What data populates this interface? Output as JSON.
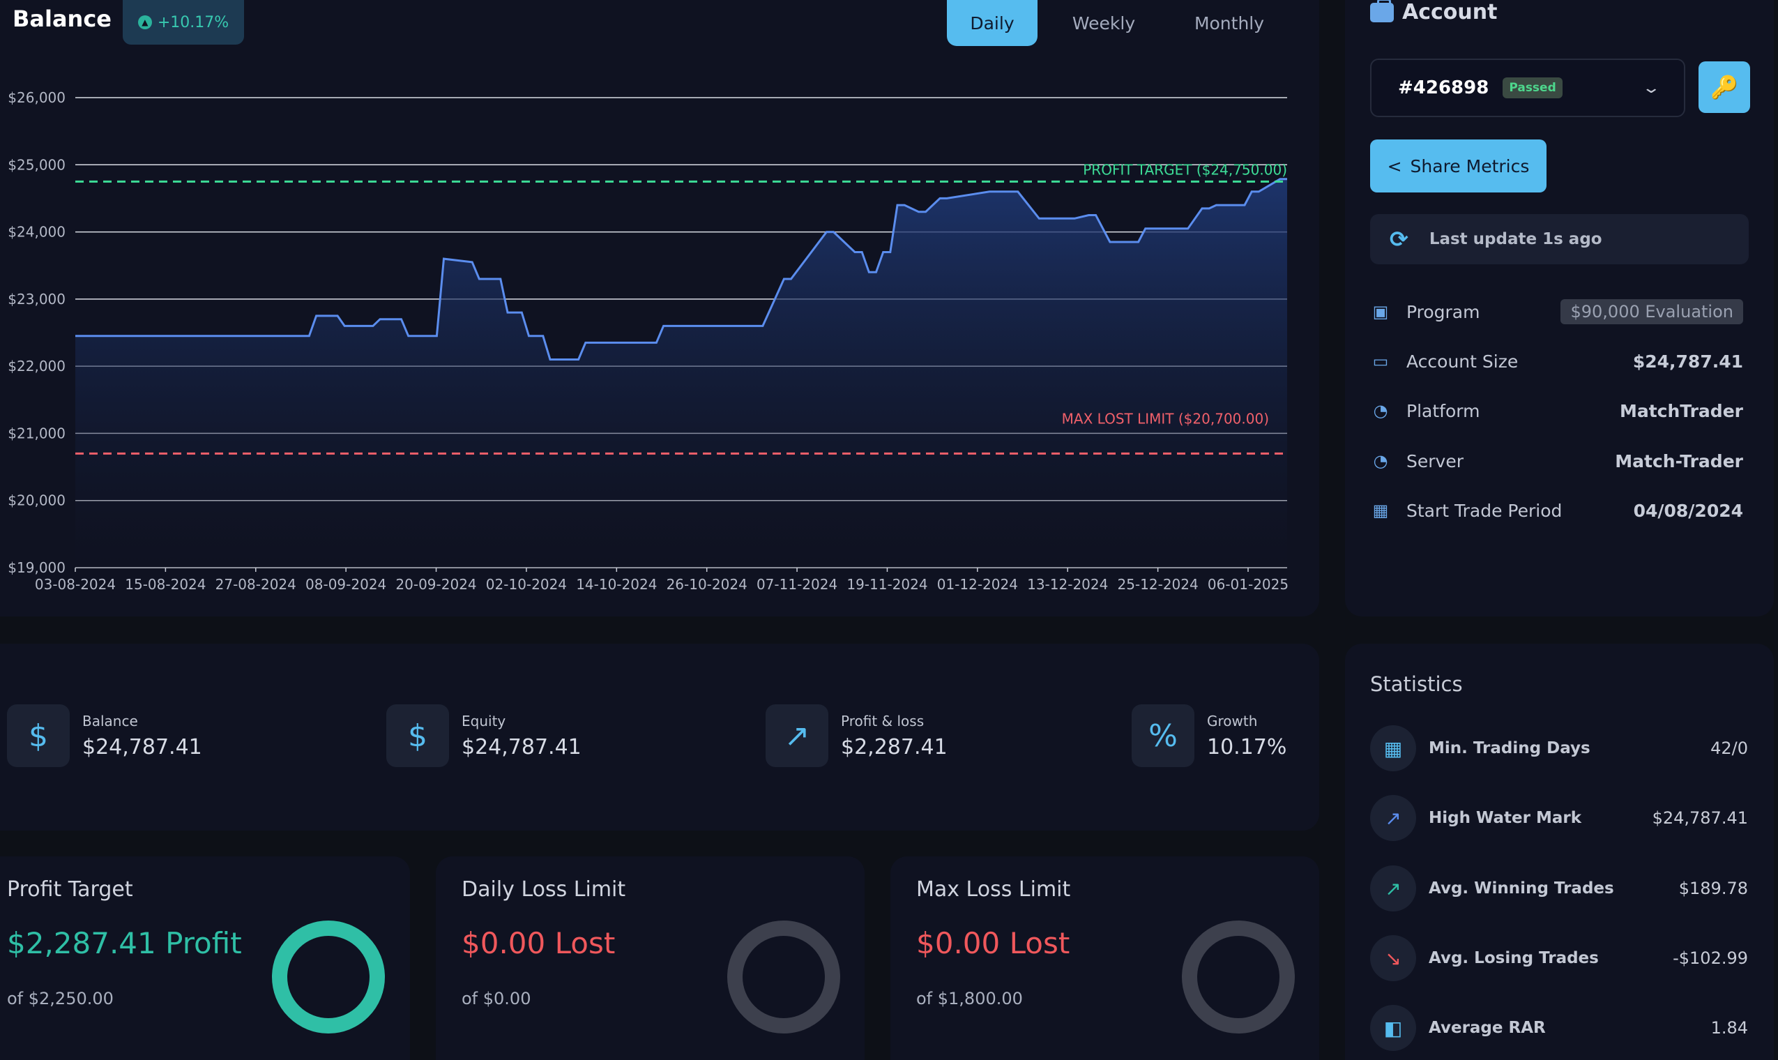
{
  "header": {
    "title": "Balance",
    "growth_badge": "+10.17%",
    "tabs": [
      {
        "label": "Daily",
        "active": true
      },
      {
        "label": "Weekly",
        "active": false
      },
      {
        "label": "Monthly",
        "active": false
      }
    ]
  },
  "chart_data": {
    "type": "area",
    "title": "",
    "xlabel": "",
    "ylabel": "",
    "ylim": [
      19000,
      26000
    ],
    "y_ticks": [
      "$26,000",
      "$25,000",
      "$24,000",
      "$23,000",
      "$22,000",
      "$21,000",
      "$20,000",
      "$19,000"
    ],
    "y_tick_values": [
      26000,
      25000,
      24000,
      23000,
      22000,
      21000,
      20000,
      19000
    ],
    "x_ticks": [
      "03-08-2024",
      "15-08-2024",
      "27-08-2024",
      "08-09-2024",
      "20-09-2024",
      "02-10-2024",
      "14-10-2024",
      "26-10-2024",
      "07-11-2024",
      "19-11-2024",
      "01-12-2024",
      "13-12-2024",
      "25-12-2024",
      "06-01-2025"
    ],
    "grid": true,
    "profit_target": {
      "value": 24750,
      "label": "PROFIT TARGET ($24,750.00)",
      "color": "#3ddc97"
    },
    "max_loss": {
      "value": 20700,
      "label": "MAX LOST LIMIT ($20,700.00)",
      "color": "#f0606a"
    },
    "line_color": "#5b8dee",
    "series": [
      {
        "x": [
          0,
          33,
          34,
          37,
          38,
          42,
          43,
          46,
          47,
          51,
          52,
          56,
          57,
          60,
          61,
          63,
          64,
          66,
          67,
          71,
          72,
          75,
          76,
          79,
          80,
          82,
          83,
          88,
          89,
          96,
          97,
          100,
          101,
          106,
          107,
          110,
          111,
          112,
          113,
          114,
          115,
          116,
          117,
          119,
          120,
          122,
          123,
          129,
          130,
          132,
          133,
          136,
          137,
          140,
          141,
          143,
          144,
          146,
          147,
          149,
          150,
          151,
          152,
          154,
          155,
          156,
          157,
          159,
          160,
          161,
          162,
          164,
          165,
          166,
          167,
          170,
          171
        ],
        "y": [
          22450,
          22450,
          22750,
          22750,
          22600,
          22600,
          22700,
          22700,
          22450,
          22450,
          23600,
          23550,
          23300,
          23300,
          22800,
          22800,
          22450,
          22450,
          22100,
          22100,
          22350,
          22350,
          22350,
          22350,
          22350,
          22350,
          22600,
          22600,
          22600,
          22600,
          22600,
          23300,
          23300,
          24000,
          24000,
          23700,
          23700,
          23400,
          23400,
          23700,
          23700,
          24400,
          24400,
          24300,
          24300,
          24500,
          24500,
          24600,
          24600,
          24600,
          24600,
          24200,
          24200,
          24200,
          24200,
          24250,
          24250,
          23850,
          23850,
          23850,
          23850,
          24050,
          24050,
          24050,
          24050,
          24050,
          24050,
          24350,
          24350,
          24400,
          24400,
          24400,
          24400,
          24600,
          24600,
          24787,
          24787
        ]
      }
    ]
  },
  "account": {
    "title": "Account",
    "id": "#426898",
    "status": "Passed",
    "share_label": "Share Metrics",
    "last_update": "Last update 1s ago",
    "rows": [
      {
        "label": "Program",
        "value": "$90,000 Evaluation"
      },
      {
        "label": "Account Size",
        "value": "$24,787.41"
      },
      {
        "label": "Platform",
        "value": "MatchTrader"
      },
      {
        "label": "Server",
        "value": "Match-Trader"
      },
      {
        "label": "Start Trade Period",
        "value": "04/08/2024"
      }
    ]
  },
  "metrics": [
    {
      "label": "Balance",
      "value": "$24,787.41",
      "icon": "$"
    },
    {
      "label": "Equity",
      "value": "$24,787.41",
      "icon": "$"
    },
    {
      "label": "Profit & loss",
      "value": "$2,287.41",
      "icon": "↗"
    },
    {
      "label": "Growth",
      "value": "10.17%",
      "icon": "%"
    }
  ],
  "limits": [
    {
      "title": "Profit Target",
      "main": "$2,287.41 Profit",
      "sub": "of $2,250.00"
    },
    {
      "title": "Daily Loss Limit",
      "main": "$0.00 Lost",
      "sub": "of $0.00"
    },
    {
      "title": "Max Loss Limit",
      "main": "$0.00 Lost",
      "sub": "of $1,800.00"
    }
  ],
  "statistics": {
    "title": "Statistics",
    "rows": [
      {
        "label": "Min. Trading Days",
        "value": "42/0",
        "icon": "calendar-check-icon",
        "color": "#56bcef"
      },
      {
        "label": "High Water Mark",
        "value": "$24,787.41",
        "icon": "trend-up-icon",
        "color": "#5b8dee"
      },
      {
        "label": "Avg. Winning Trades",
        "value": "$189.78",
        "icon": "trend-up-icon",
        "color": "#2fbfa6"
      },
      {
        "label": "Avg. Losing Trades",
        "value": "-$102.99",
        "icon": "trend-down-icon",
        "color": "#f0585c"
      },
      {
        "label": "Average RAR",
        "value": "1.84",
        "icon": "wallet-icon",
        "color": "#56bcef"
      }
    ]
  }
}
